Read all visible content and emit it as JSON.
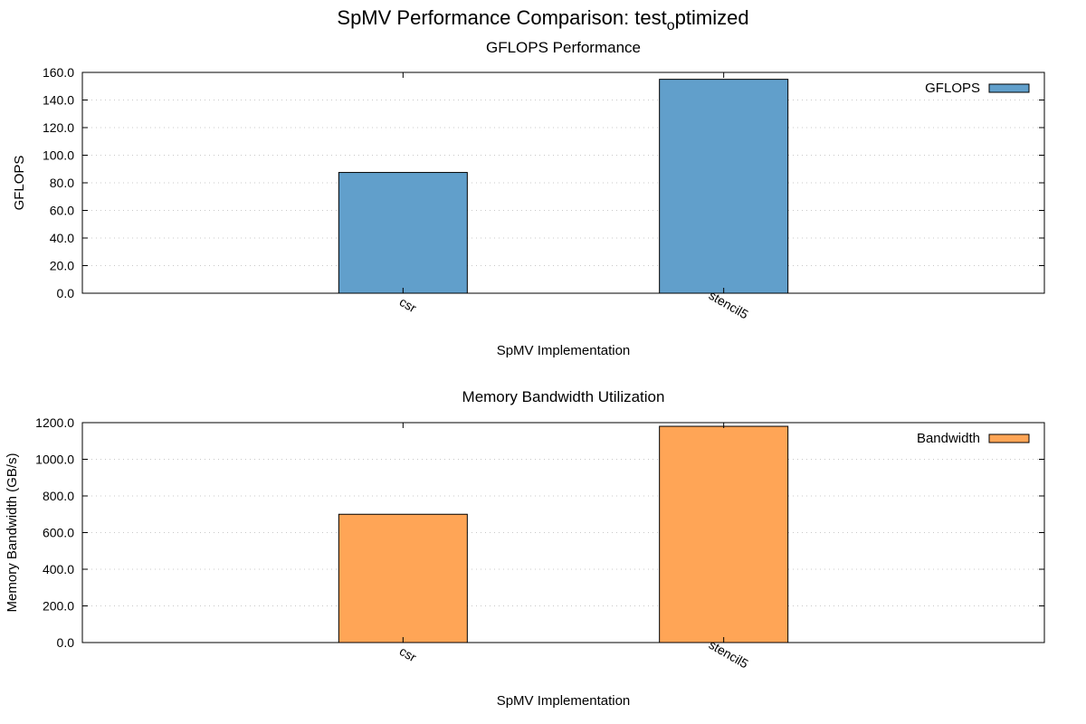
{
  "figure": {
    "title_main": "SpMV Performance Comparison: test",
    "title_subscript": "o",
    "title_rest": "ptimized"
  },
  "chart_data": [
    {
      "type": "bar",
      "title": "GFLOPS Performance",
      "xlabel": "SpMV Implementation",
      "ylabel": "GFLOPS",
      "categories": [
        "csr",
        "stencil5"
      ],
      "series": [
        {
          "name": "GFLOPS",
          "values": [
            87.5,
            155.0
          ],
          "color": "#619fcb"
        }
      ],
      "ylim": [
        0,
        160
      ],
      "yticks": [
        0,
        20,
        40,
        60,
        80,
        100,
        120,
        140,
        160
      ],
      "ytick_labels": [
        "0.0",
        "20.0",
        "40.0",
        "60.0",
        "80.0",
        "100.0",
        "120.0",
        "140.0",
        "160.0"
      ],
      "grid": true,
      "legend_position": "top-right"
    },
    {
      "type": "bar",
      "title": "Memory Bandwidth Utilization",
      "xlabel": "SpMV Implementation",
      "ylabel": "Memory Bandwidth (GB/s)",
      "categories": [
        "csr",
        "stencil5"
      ],
      "series": [
        {
          "name": "Bandwidth",
          "values": [
            700.0,
            1180.0
          ],
          "color": "#ffa556"
        }
      ],
      "ylim": [
        0,
        1200
      ],
      "yticks": [
        0,
        200,
        400,
        600,
        800,
        1000,
        1200
      ],
      "ytick_labels": [
        "0.0",
        "200.0",
        "400.0",
        "600.0",
        "800.0",
        "1000.0",
        "1200.0"
      ],
      "grid": true,
      "legend_position": "top-right"
    }
  ]
}
